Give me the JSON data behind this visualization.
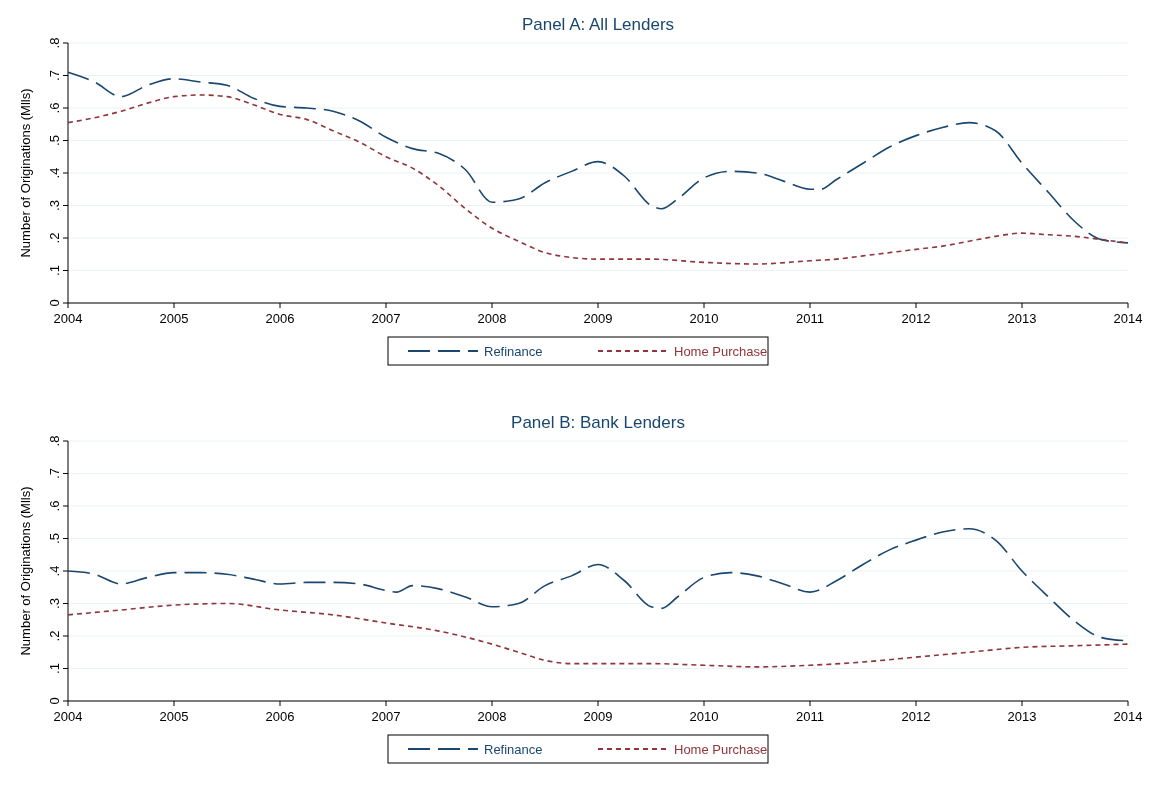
{
  "chart_data": [
    {
      "type": "line",
      "title": "Panel A: All Lenders",
      "ylabel": "Number of Originations (Mlls)",
      "xlim": [
        2004,
        2014
      ],
      "xticks": [
        2004,
        2005,
        2006,
        2007,
        2008,
        2009,
        2010,
        2011,
        2012,
        2013,
        2014
      ],
      "ylim": [
        0,
        0.8
      ],
      "yticks": [
        {
          "value": 0,
          "label": "0"
        },
        {
          "value": 0.1,
          "label": ".1"
        },
        {
          "value": 0.2,
          "label": ".2"
        },
        {
          "value": 0.3,
          "label": ".3"
        },
        {
          "value": 0.4,
          "label": ".4"
        },
        {
          "value": 0.5,
          "label": ".5"
        },
        {
          "value": 0.6,
          "label": ".6"
        },
        {
          "value": 0.7,
          "label": ".7"
        },
        {
          "value": 0.8,
          "label": ".8"
        }
      ],
      "grid": "y",
      "legend": "bottom",
      "series": [
        {
          "name": "Refinance",
          "color": "#1a476f",
          "line_style": "dashed",
          "x": [
            2004,
            2004.25,
            2004.5,
            2004.75,
            2005,
            2005.25,
            2005.5,
            2005.75,
            2006,
            2006.25,
            2006.5,
            2006.75,
            2007,
            2007.25,
            2007.5,
            2007.75,
            2008,
            2008.25,
            2008.5,
            2008.75,
            2009,
            2009.25,
            2009.5,
            2009.6,
            2009.75,
            2010,
            2010.25,
            2010.5,
            2010.75,
            2011,
            2011.1,
            2011.25,
            2011.5,
            2011.75,
            2012,
            2012.25,
            2012.5,
            2012.75,
            2013,
            2013.25,
            2013.5,
            2013.75,
            2014
          ],
          "values": [
            0.71,
            0.68,
            0.635,
            0.67,
            0.69,
            0.68,
            0.67,
            0.63,
            0.605,
            0.6,
            0.59,
            0.56,
            0.51,
            0.475,
            0.46,
            0.41,
            0.31,
            0.32,
            0.37,
            0.405,
            0.435,
            0.39,
            0.3,
            0.29,
            0.32,
            0.385,
            0.405,
            0.4,
            0.375,
            0.35,
            0.35,
            0.38,
            0.43,
            0.48,
            0.515,
            0.54,
            0.555,
            0.53,
            0.43,
            0.34,
            0.25,
            0.195,
            0.185
          ]
        },
        {
          "name": "Home Purchase",
          "color": "#90353b",
          "line_style": "dashed",
          "x": [
            2004,
            2004.25,
            2004.5,
            2004.75,
            2005,
            2005.25,
            2005.5,
            2005.75,
            2006,
            2006.25,
            2006.5,
            2006.75,
            2007,
            2007.25,
            2007.5,
            2007.75,
            2008,
            2008.25,
            2008.5,
            2008.75,
            2009,
            2009.5,
            2010,
            2010.5,
            2011,
            2011.25,
            2011.5,
            2011.75,
            2012,
            2012.25,
            2012.5,
            2012.75,
            2013,
            2013.25,
            2013.5,
            2013.75,
            2014
          ],
          "values": [
            0.555,
            0.57,
            0.59,
            0.615,
            0.635,
            0.64,
            0.635,
            0.61,
            0.58,
            0.565,
            0.53,
            0.495,
            0.45,
            0.415,
            0.36,
            0.29,
            0.23,
            0.19,
            0.155,
            0.14,
            0.135,
            0.135,
            0.125,
            0.12,
            0.13,
            0.135,
            0.145,
            0.155,
            0.165,
            0.175,
            0.19,
            0.205,
            0.215,
            0.21,
            0.205,
            0.195,
            0.185
          ]
        }
      ]
    },
    {
      "type": "line",
      "title": "Panel B: Bank Lenders",
      "ylabel": "Number of Originations (Mlls)",
      "xlim": [
        2004,
        2014
      ],
      "xticks": [
        2004,
        2005,
        2006,
        2007,
        2008,
        2009,
        2010,
        2011,
        2012,
        2013,
        2014
      ],
      "ylim": [
        0,
        0.8
      ],
      "yticks": [
        {
          "value": 0,
          "label": "0"
        },
        {
          "value": 0.1,
          "label": ".1"
        },
        {
          "value": 0.2,
          "label": ".2"
        },
        {
          "value": 0.3,
          "label": ".3"
        },
        {
          "value": 0.4,
          "label": ".4"
        },
        {
          "value": 0.5,
          "label": ".5"
        },
        {
          "value": 0.6,
          "label": ".6"
        },
        {
          "value": 0.7,
          "label": ".7"
        },
        {
          "value": 0.8,
          "label": ".8"
        }
      ],
      "grid": "y",
      "legend": "bottom",
      "series": [
        {
          "name": "Refinance",
          "color": "#1a476f",
          "line_style": "dashed",
          "x": [
            2004,
            2004.25,
            2004.5,
            2004.75,
            2005,
            2005.25,
            2005.5,
            2005.75,
            2006,
            2006.25,
            2006.5,
            2006.75,
            2007,
            2007.1,
            2007.25,
            2007.5,
            2007.75,
            2008,
            2008.25,
            2008.5,
            2008.75,
            2009,
            2009.25,
            2009.5,
            2009.6,
            2009.75,
            2010,
            2010.25,
            2010.5,
            2010.75,
            2011,
            2011.25,
            2011.5,
            2011.75,
            2012,
            2012.25,
            2012.5,
            2012.75,
            2013,
            2013.25,
            2013.5,
            2013.75,
            2014
          ],
          "values": [
            0.4,
            0.39,
            0.36,
            0.38,
            0.395,
            0.395,
            0.39,
            0.375,
            0.36,
            0.365,
            0.365,
            0.36,
            0.34,
            0.335,
            0.355,
            0.345,
            0.32,
            0.29,
            0.3,
            0.355,
            0.385,
            0.42,
            0.37,
            0.29,
            0.285,
            0.32,
            0.38,
            0.395,
            0.385,
            0.36,
            0.335,
            0.37,
            0.42,
            0.465,
            0.495,
            0.52,
            0.53,
            0.495,
            0.4,
            0.32,
            0.245,
            0.195,
            0.185
          ]
        },
        {
          "name": "Home Purchase",
          "color": "#90353b",
          "line_style": "dashed",
          "x": [
            2004,
            2004.5,
            2005,
            2005.5,
            2006,
            2006.5,
            2007,
            2007.5,
            2008,
            2008.25,
            2008.5,
            2008.75,
            2009,
            2009.5,
            2010,
            2010.5,
            2011,
            2011.5,
            2012,
            2012.5,
            2013,
            2013.5,
            2014
          ],
          "values": [
            0.265,
            0.28,
            0.295,
            0.3,
            0.28,
            0.265,
            0.24,
            0.215,
            0.175,
            0.15,
            0.125,
            0.115,
            0.115,
            0.115,
            0.11,
            0.105,
            0.11,
            0.12,
            0.135,
            0.15,
            0.165,
            0.17,
            0.175
          ]
        }
      ]
    }
  ]
}
